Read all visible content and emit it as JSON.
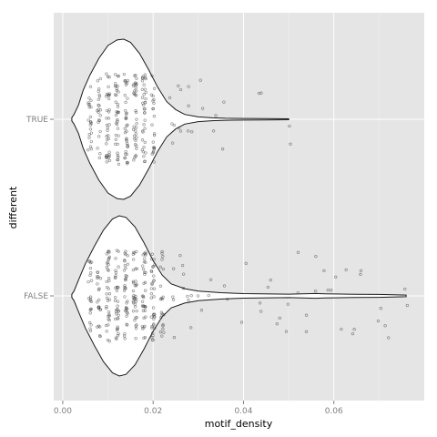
{
  "chart_data": {
    "type": "violin",
    "title": "",
    "xlabel": "motif_density",
    "ylabel": "different",
    "xlim": [
      -0.002,
      0.08
    ],
    "x_ticks": [
      0.0,
      0.02,
      0.04,
      0.06
    ],
    "x_tick_labels": [
      "0.00",
      "0.02",
      "0.04",
      "0.06"
    ],
    "categories": [
      "TRUE",
      "FALSE"
    ],
    "grid": true,
    "theme_background": "#e5e5e5",
    "groups": [
      {
        "category": "TRUE",
        "violin": {
          "x": [
            0.002,
            0.0025,
            0.0035,
            0.0045,
            0.006,
            0.008,
            0.01,
            0.012,
            0.0135,
            0.015,
            0.017,
            0.019,
            0.021,
            0.023,
            0.025,
            0.027,
            0.03,
            0.033,
            0.036,
            0.04,
            0.045,
            0.05
          ],
          "half_width": [
            0.02,
            0.06,
            0.18,
            0.36,
            0.55,
            0.76,
            0.92,
            0.99,
            1.0,
            0.96,
            0.82,
            0.62,
            0.4,
            0.22,
            0.12,
            0.06,
            0.03,
            0.018,
            0.012,
            0.01,
            0.008,
            0.006
          ]
        },
        "points": {
          "x_min": 0.002,
          "x_max": 0.0505,
          "dense_columns": [
            0.006,
            0.008,
            0.01,
            0.012,
            0.014,
            0.016,
            0.018,
            0.02
          ],
          "outliers": [
            0.024,
            0.026,
            0.028,
            0.031,
            0.034,
            0.036,
            0.044,
            0.05
          ]
        }
      },
      {
        "category": "FALSE",
        "violin": {
          "x": [
            0.002,
            0.0025,
            0.0035,
            0.005,
            0.007,
            0.009,
            0.011,
            0.0125,
            0.014,
            0.016,
            0.018,
            0.02,
            0.022,
            0.024,
            0.027,
            0.03,
            0.035,
            0.04,
            0.05,
            0.056,
            0.058,
            0.06,
            0.065,
            0.07,
            0.076
          ],
          "half_width": [
            0.02,
            0.06,
            0.2,
            0.4,
            0.62,
            0.82,
            0.96,
            1.0,
            0.98,
            0.86,
            0.66,
            0.44,
            0.26,
            0.15,
            0.09,
            0.06,
            0.04,
            0.028,
            0.022,
            0.03,
            0.026,
            0.024,
            0.02,
            0.018,
            0.01
          ]
        },
        "points": {
          "x_min": 0.002,
          "x_max": 0.076,
          "dense_columns": [
            0.006,
            0.008,
            0.01,
            0.012,
            0.014,
            0.016,
            0.018,
            0.02,
            0.022
          ],
          "outliers": [
            0.024,
            0.026,
            0.028,
            0.03,
            0.033,
            0.036,
            0.04,
            0.044,
            0.046,
            0.048,
            0.05,
            0.052,
            0.054,
            0.056,
            0.058,
            0.06,
            0.062,
            0.064,
            0.066,
            0.07,
            0.072,
            0.076
          ]
        }
      }
    ]
  }
}
